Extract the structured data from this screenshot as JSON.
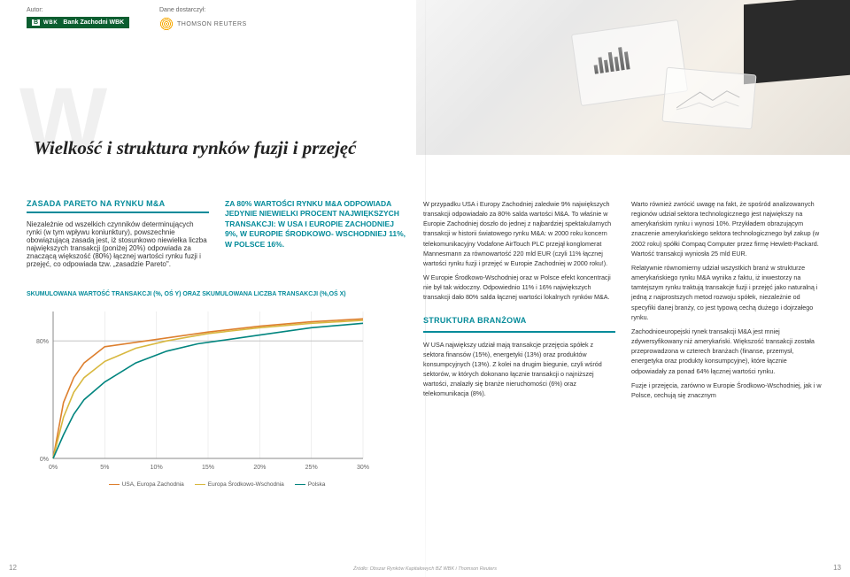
{
  "header": {
    "author_label": "Autor:",
    "bank_logo_text": "Bank Zachodni WBK",
    "data_label": "Dane dostarczył:",
    "tr_text": "THOMSON REUTERS"
  },
  "title": "Wielkość i struktura rynków fuzji i przejęć",
  "watermark": "W",
  "left_section_head": "ZASADA PARETO NA RYNKU M&A",
  "para_left": "Niezależnie od wszelkich czynników determinują­cych rynki (w tym wpływu koniunktury), powszech­nie obowiązującą zasadą jest, iż stosunkowo nie­wielka liczba największych transakcji (poniżej 20%) odpowiada za znaczącą większość (80%) łącznej wartości rynku fuzji i przejęć, co odpowiada tzw. „zasadzie Pareto\".",
  "callout": "ZA 80% WARTOŚCI RYNKU M&A ODPOWIADA JEDYNIE NIEWIELKI PROCENT NAJWIĘKSZYCH TRANSAKCJI: W USA I EUROPIE ZACHODNIEJ 9%, W EUROPIE ŚRODKOWO- WSCHODNIEJ 11%, W POLSCE 16%.",
  "chart": {
    "title": "SKUMULOWANA WARTOŚĆ TRANSAKCJI (%, OŚ Y) ORAZ SKUMULOWANA LICZBA TRANSAKCJI (%,OŚ X)",
    "x_ticks": [
      "0%",
      "5%",
      "10%",
      "15%",
      "20%",
      "25%",
      "30%"
    ],
    "y_ticks": [
      "0%",
      "80%"
    ],
    "xlim": [
      0,
      30
    ],
    "ylim": [
      0,
      100
    ],
    "grid_color": "#e5e5e5",
    "axis_color": "#888888",
    "series": [
      {
        "label": "USA, Europa Zachodnia",
        "color": "#dd7f2e",
        "points": [
          [
            0,
            0
          ],
          [
            1,
            38
          ],
          [
            2,
            55
          ],
          [
            3,
            65
          ],
          [
            5,
            76
          ],
          [
            9,
            80
          ],
          [
            15,
            86
          ],
          [
            20,
            90
          ],
          [
            25,
            93
          ],
          [
            30,
            95
          ]
        ]
      },
      {
        "label": "Europa Środkowo-Wschodnia",
        "color": "#d8b83f",
        "points": [
          [
            0,
            0
          ],
          [
            1,
            28
          ],
          [
            2,
            45
          ],
          [
            3,
            55
          ],
          [
            5,
            66
          ],
          [
            8,
            75
          ],
          [
            11,
            80
          ],
          [
            15,
            85
          ],
          [
            20,
            89
          ],
          [
            25,
            92
          ],
          [
            30,
            94
          ]
        ]
      },
      {
        "label": "Polska",
        "color": "#02857f",
        "points": [
          [
            0,
            0
          ],
          [
            1,
            16
          ],
          [
            2,
            30
          ],
          [
            3,
            40
          ],
          [
            5,
            52
          ],
          [
            8,
            65
          ],
          [
            11,
            73
          ],
          [
            14,
            78
          ],
          [
            16,
            80
          ],
          [
            20,
            84
          ],
          [
            25,
            89
          ],
          [
            30,
            92
          ]
        ]
      }
    ],
    "ref_line_y": 80,
    "background_color": "#ffffff"
  },
  "col3_p1": "W przypadku USA i Europy Zachodniej zaledwie 9% największych transakcji odpowiadało za 80% salda wartości M&A. To właśnie w Europie Zachodniej do­szło do jednej z najbardziej spektakularnych transak­cji w historii światowego rynku M&A: w 2000 roku koncern telekomunikacyjny Vodafone AirTouch PLC przejął konglomerat Mannesmann za równowartość 220 mld EUR (czyli 11% łącznej wartości rynku fuzji i przejęć w Europie Zachodniej w 2000 roku!).",
  "col3_p2": "W Europie Środkowo-Wschodniej oraz w Polsce efekt koncentracji nie był tak widoczny. Odpowied­nio 11% i 16% największych transakcji dało 80% salda łącznej wartości lokalnych rynków M&A.",
  "col3_head": "STRUKTURA BRANŻOWA",
  "col3_p3": "W USA największy udział mają transakcje przejęcia spółek z sektora finansów (15%), energetyki (13%) oraz produktów konsumpcyjnych (13%). Z kolei na drugim biegunie, czyli wśród sektorów, w których dokonano łącznie transakcji o najniższej wartości, znalazły się branże nieruchomości (6%) oraz telekomunikacja (8%).",
  "col4_p1": "Warto również zwrócić uwagę na fakt, że spośród ana­lizowanych regionów udział sektora technologicznego jest największy na amerykańskim rynku i wynosi 10%. Przykładem obrazującym znaczenie amerykańskiego sektora technologicznego był zakup (w 2002 roku) spółki Compaq Computer przez firmę Hewlett-Packard. Wartość transakcji wyniosła 25 mld EUR.",
  "col4_p2": "Relatywnie równomierny udział wszystkich branż w strukturze amerykańskiego rynku M&A wynika z faktu, iż inwestorzy na tamtejszym rynku traktują transakcje fuzji i przejęć jako naturalną i jedną z naj­prostszych metod rozwoju spółek, niezależnie od specyfiki danej branży, co jest typową cechą dużego i dojrzałego rynku.",
  "col4_p3": "Zachodnioeuropejski rynek transakcji M&A jest mniej zdywersyfikowany niż amerykański. Większość transakcji została przeprowadzona w czterech bran­żach (finanse, przemysł, energetyka oraz produkty konsumpcyjne), które łącznie odpowiadały za ponad 64% łącznej wartości rynku.",
  "col4_p4": "Fuzje i przejęcia, zarówno w Europie Środkowo­-Wschodniej, jak i w Polsce, cechują się znacznym",
  "source": "Źródło: Obszar Rynków Kapitałowych BZ WBK i Thomson Reuters",
  "page_left": "12",
  "page_right": "13"
}
